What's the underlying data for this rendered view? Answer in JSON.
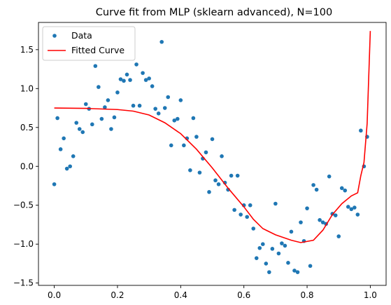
{
  "chart_data": {
    "type": "scatter",
    "title": "Curve fit from MLP (sklearn advanced), N=100",
    "xlabel": "",
    "ylabel": "",
    "xlim": [
      -0.05,
      1.05
    ],
    "ylim": [
      -1.53,
      1.85
    ],
    "x_ticks": [
      0.0,
      0.2,
      0.4,
      0.6,
      0.8,
      1.0
    ],
    "x_tick_labels": [
      "0.0",
      "0.2",
      "0.4",
      "0.6",
      "0.8",
      "1.0"
    ],
    "y_ticks": [
      -1.5,
      -1.0,
      -0.5,
      0.0,
      0.5,
      1.0,
      1.5
    ],
    "y_tick_labels": [
      "−1.5",
      "−1.0",
      "−0.5",
      "0.0",
      "0.5",
      "1.0",
      "1.5"
    ],
    "grid": false,
    "legend_position": "top-left",
    "legend": [
      "Data",
      "Fitted Curve"
    ],
    "colors": {
      "data": "#1f77b4",
      "fit": "#ff0000"
    },
    "series": [
      {
        "name": "Data",
        "kind": "scatter",
        "points": [
          [
            0.0,
            -0.23
          ],
          [
            0.01,
            0.62
          ],
          [
            0.02,
            0.22
          ],
          [
            0.03,
            0.36
          ],
          [
            0.04,
            -0.03
          ],
          [
            0.05,
            0.0
          ],
          [
            0.06,
            0.13
          ],
          [
            0.07,
            0.56
          ],
          [
            0.08,
            0.48
          ],
          [
            0.09,
            0.44
          ],
          [
            0.1,
            0.8
          ],
          [
            0.11,
            0.74
          ],
          [
            0.12,
            0.54
          ],
          [
            0.13,
            1.29
          ],
          [
            0.14,
            1.02
          ],
          [
            0.15,
            0.61
          ],
          [
            0.16,
            0.76
          ],
          [
            0.17,
            0.85
          ],
          [
            0.18,
            0.48
          ],
          [
            0.19,
            0.63
          ],
          [
            0.2,
            0.95
          ],
          [
            0.21,
            1.12
          ],
          [
            0.22,
            1.1
          ],
          [
            0.23,
            1.18
          ],
          [
            0.24,
            1.11
          ],
          [
            0.25,
            0.78
          ],
          [
            0.26,
            1.31
          ],
          [
            0.27,
            0.78
          ],
          [
            0.28,
            1.2
          ],
          [
            0.29,
            1.11
          ],
          [
            0.3,
            1.13
          ],
          [
            0.31,
            1.03
          ],
          [
            0.32,
            0.74
          ],
          [
            0.33,
            0.68
          ],
          [
            0.34,
            1.6
          ],
          [
            0.35,
            0.75
          ],
          [
            0.36,
            0.89
          ],
          [
            0.37,
            0.27
          ],
          [
            0.38,
            0.59
          ],
          [
            0.39,
            0.61
          ],
          [
            0.4,
            0.85
          ],
          [
            0.41,
            0.27
          ],
          [
            0.42,
            0.36
          ],
          [
            0.43,
            -0.05
          ],
          [
            0.44,
            0.62
          ],
          [
            0.45,
            0.38
          ],
          [
            0.46,
            -0.08
          ],
          [
            0.47,
            0.1
          ],
          [
            0.48,
            0.18
          ],
          [
            0.49,
            -0.33
          ],
          [
            0.5,
            0.35
          ],
          [
            0.51,
            -0.18
          ],
          [
            0.52,
            -0.23
          ],
          [
            0.53,
            0.13
          ],
          [
            0.54,
            -0.21
          ],
          [
            0.55,
            -0.3
          ],
          [
            0.56,
            -0.12
          ],
          [
            0.57,
            -0.56
          ],
          [
            0.58,
            -0.12
          ],
          [
            0.59,
            -0.62
          ],
          [
            0.6,
            -0.5
          ],
          [
            0.61,
            -0.65
          ],
          [
            0.62,
            -0.5
          ],
          [
            0.63,
            -0.8
          ],
          [
            0.64,
            -1.18
          ],
          [
            0.65,
            -1.05
          ],
          [
            0.66,
            -1.0
          ],
          [
            0.67,
            -1.25
          ],
          [
            0.68,
            -1.36
          ],
          [
            0.69,
            -1.06
          ],
          [
            0.7,
            -0.48
          ],
          [
            0.71,
            -1.12
          ],
          [
            0.72,
            -0.99
          ],
          [
            0.73,
            -1.02
          ],
          [
            0.74,
            -1.24
          ],
          [
            0.75,
            -0.84
          ],
          [
            0.76,
            -1.34
          ],
          [
            0.77,
            -1.36
          ],
          [
            0.78,
            -0.72
          ],
          [
            0.79,
            -0.96
          ],
          [
            0.8,
            -0.54
          ],
          [
            0.81,
            -1.28
          ],
          [
            0.82,
            -0.24
          ],
          [
            0.83,
            -0.3
          ],
          [
            0.84,
            -0.69
          ],
          [
            0.85,
            -0.72
          ],
          [
            0.86,
            -0.74
          ],
          [
            0.87,
            -0.13
          ],
          [
            0.88,
            -0.61
          ],
          [
            0.89,
            -0.63
          ],
          [
            0.9,
            -0.9
          ],
          [
            0.91,
            -0.28
          ],
          [
            0.92,
            -0.31
          ],
          [
            0.93,
            -0.52
          ],
          [
            0.94,
            -0.55
          ],
          [
            0.95,
            -0.53
          ],
          [
            0.96,
            -0.62
          ],
          [
            0.97,
            0.46
          ],
          [
            0.98,
            0.0
          ],
          [
            0.99,
            0.38
          ]
        ]
      },
      {
        "name": "Fitted Curve",
        "kind": "line",
        "points": [
          [
            0.0,
            0.75
          ],
          [
            0.1,
            0.745
          ],
          [
            0.2,
            0.73
          ],
          [
            0.25,
            0.71
          ],
          [
            0.3,
            0.66
          ],
          [
            0.35,
            0.56
          ],
          [
            0.4,
            0.42
          ],
          [
            0.45,
            0.22
          ],
          [
            0.5,
            -0.02
          ],
          [
            0.55,
            -0.28
          ],
          [
            0.6,
            -0.52
          ],
          [
            0.63,
            -0.68
          ],
          [
            0.66,
            -0.8
          ],
          [
            0.7,
            -0.88
          ],
          [
            0.75,
            -0.95
          ],
          [
            0.78,
            -0.98
          ],
          [
            0.82,
            -0.95
          ],
          [
            0.85,
            -0.82
          ],
          [
            0.88,
            -0.62
          ],
          [
            0.91,
            -0.48
          ],
          [
            0.94,
            -0.38
          ],
          [
            0.96,
            -0.34
          ],
          [
            0.97,
            -0.12
          ],
          [
            0.98,
            0.05
          ],
          [
            0.99,
            0.55
          ],
          [
            1.0,
            1.74
          ]
        ]
      }
    ]
  }
}
